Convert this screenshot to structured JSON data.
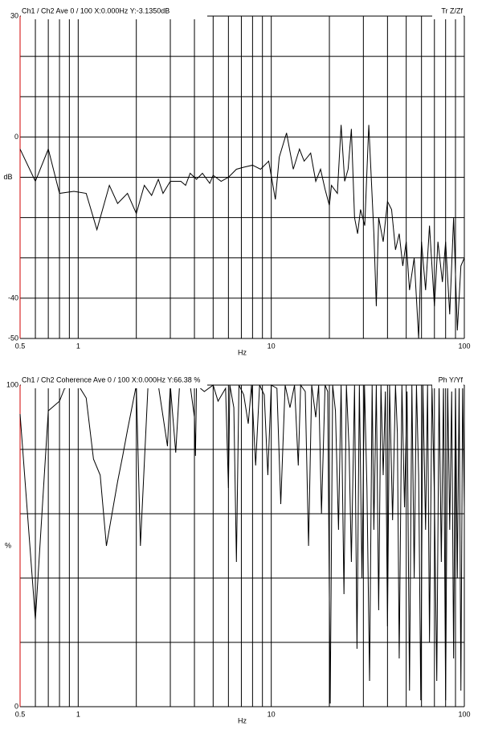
{
  "chart_data": [
    {
      "type": "line",
      "header": "Ch1 / Ch2  Ave 0 / 100  X:0.000Hz  Y:-3.1350dB",
      "header_right": "Tr Z/Zf",
      "xlabel": "Hz",
      "ylabel": "dB",
      "xscale": "log",
      "color": "#000000",
      "xlim": [
        0.5,
        100
      ],
      "ylim": [
        -50,
        30
      ],
      "xticks": [
        0.5,
        1,
        10,
        100
      ],
      "xgrid": [
        0.6,
        0.7,
        0.8,
        0.9,
        2,
        3,
        4,
        5,
        6,
        7,
        8,
        9,
        20,
        30,
        40,
        50,
        60,
        70,
        80,
        90
      ],
      "yticks": [
        30,
        0,
        -40,
        -50
      ],
      "ygrid": [
        20,
        10,
        -10,
        -20,
        -30
      ],
      "x": [
        0.5,
        0.6,
        0.7,
        0.8,
        0.95,
        1.1,
        1.25,
        1.45,
        1.6,
        1.8,
        2.0,
        2.2,
        2.4,
        2.6,
        2.75,
        3.0,
        3.4,
        3.6,
        3.8,
        4.1,
        4.4,
        4.8,
        5.0,
        5.5,
        6.0,
        6.6,
        7.2,
        8.0,
        8.8,
        9.7,
        10.5,
        11,
        12,
        13,
        14,
        14.8,
        16,
        17,
        18,
        19,
        20,
        20.5,
        22,
        23,
        24,
        25,
        26,
        27,
        28,
        29,
        30.5,
        32,
        34,
        35,
        36,
        38,
        40,
        42,
        44,
        46,
        48,
        50,
        52,
        55,
        58,
        60,
        63,
        66,
        70,
        73,
        77,
        80,
        84,
        88,
        92,
        96,
        100
      ],
      "values": [
        -3,
        -11,
        -3,
        -14,
        -13.5,
        -14,
        -23,
        -12,
        -16.5,
        -14,
        -19,
        -12,
        -14.5,
        -10.5,
        -14,
        -11,
        -11,
        -12,
        -9,
        -10.5,
        -9,
        -11.5,
        -9.5,
        -11,
        -10,
        -8,
        -7.5,
        -7,
        -8,
        -6,
        -15.5,
        -5,
        1,
        -8,
        -3,
        -6,
        -4,
        -11,
        -8,
        -13,
        -17,
        -12,
        -14,
        3,
        -11,
        -8,
        2,
        -20,
        -24,
        -18,
        -22,
        3,
        -24,
        -42,
        -20,
        -26,
        -16,
        -18,
        -28,
        -24,
        -32,
        -26,
        -38,
        -30,
        -50,
        -26,
        -38,
        -22,
        -42,
        -26,
        -36,
        -26,
        -44,
        -20,
        -48,
        -32,
        -30
      ]
    },
    {
      "type": "line",
      "header": "Ch1 / Ch2  Coherence Ave 0 / 100  X:0.000Hz  Y:66.38 %",
      "header_right": "Ph Y/Yf",
      "xlabel": "Hz",
      "ylabel": "%",
      "xscale": "log",
      "color": "#000000",
      "xlim": [
        0.5,
        100
      ],
      "ylim": [
        0,
        100
      ],
      "xticks": [
        0.5,
        1,
        10,
        100
      ],
      "xgrid": [
        0.6,
        0.7,
        0.8,
        0.9,
        2,
        3,
        4,
        5,
        6,
        7,
        8,
        9,
        20,
        30,
        40,
        50,
        60,
        70,
        80,
        90
      ],
      "yticks": [
        100,
        0
      ],
      "ygrid": [
        80,
        60,
        40,
        20
      ],
      "x": [
        0.5,
        0.6,
        0.7,
        0.8,
        0.85,
        1,
        1.1,
        1.2,
        1.3,
        1.4,
        1.6,
        1.7,
        1.8,
        2.0,
        2.1,
        2.3,
        2.6,
        2.9,
        3.0,
        3.2,
        3.35,
        3.8,
        4.0,
        4.05,
        4.1,
        4.5,
        5.0,
        5.3,
        5.8,
        6.0,
        6.1,
        6.4,
        6.6,
        6.8,
        7.2,
        7.6,
        7.9,
        8.3,
        8.7,
        9.2,
        9.6,
        10,
        10.7,
        11.2,
        11.8,
        12.5,
        13.2,
        13.8,
        14.2,
        15,
        15.6,
        16.2,
        17,
        17.6,
        18.2,
        19,
        19.6,
        20.2,
        20.8,
        21.5,
        22.3,
        23,
        23.8,
        24.5,
        25.3,
        26,
        27,
        27.8,
        28.6,
        29.5,
        30.4,
        31.3,
        32.3,
        33.3,
        34,
        35,
        36,
        37,
        38,
        39,
        40,
        41,
        42.5,
        44,
        45,
        46,
        47.5,
        49,
        50.5,
        52,
        53.5,
        55,
        56.5,
        58,
        59.5,
        61,
        63,
        64.5,
        66,
        68,
        70,
        72,
        74,
        76,
        78,
        80,
        82,
        84,
        86,
        88,
        90,
        92,
        94,
        96,
        98,
        100
      ],
      "values": [
        91,
        27,
        92,
        95,
        99,
        100,
        96,
        77,
        72,
        50,
        70,
        78,
        86,
        100,
        50,
        100,
        100,
        81,
        100,
        79,
        100,
        100,
        90,
        78,
        100,
        98,
        100,
        95,
        99,
        68,
        100,
        93,
        45,
        100,
        97,
        88,
        100,
        75,
        100,
        97,
        72,
        100,
        99,
        63,
        100,
        93,
        100,
        75,
        100,
        98,
        50,
        100,
        90,
        100,
        60,
        100,
        98,
        1,
        100,
        92,
        55,
        100,
        35,
        100,
        80,
        45,
        100,
        18,
        100,
        40,
        100,
        68,
        8,
        100,
        55,
        100,
        30,
        100,
        72,
        98,
        25,
        100,
        58,
        100,
        85,
        15,
        100,
        62,
        98,
        5,
        100,
        40,
        100,
        72,
        2,
        100,
        55,
        100,
        20,
        100,
        65,
        8,
        100,
        45,
        100,
        2,
        100,
        55,
        98,
        15,
        100,
        40,
        100,
        5,
        100,
        62
      ]
    }
  ]
}
